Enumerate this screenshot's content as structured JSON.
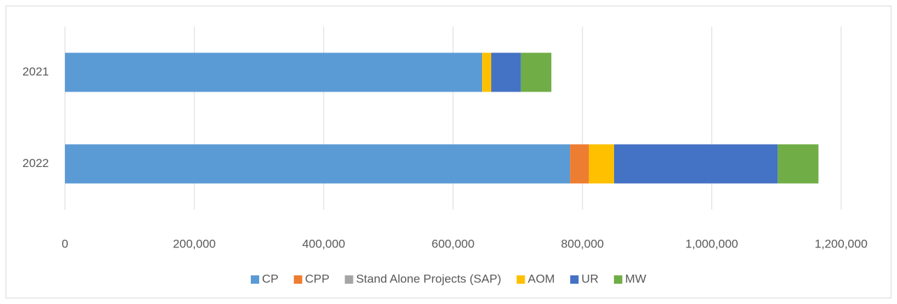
{
  "chart_data": {
    "type": "stacked-barh",
    "categories": [
      "2021",
      "2022"
    ],
    "series": [
      {
        "name": "CP",
        "color": "#5b9bd5",
        "values": [
          645000,
          781000
        ]
      },
      {
        "name": "CPP",
        "color": "#ed7d31",
        "values": [
          0,
          29000
        ]
      },
      {
        "name": "Stand Alone Projects (SAP)",
        "color": "#a5a5a5",
        "values": [
          0,
          0
        ]
      },
      {
        "name": "AOM",
        "color": "#ffc000",
        "values": [
          14000,
          39000
        ]
      },
      {
        "name": "UR",
        "color": "#4472c4",
        "values": [
          46000,
          253000
        ]
      },
      {
        "name": "MW",
        "color": "#70ad47",
        "values": [
          47000,
          63000
        ]
      }
    ],
    "xlim": [
      0,
      1200000
    ],
    "xticks": [
      0,
      {
        "value": 200000,
        "label": "200,000"
      },
      {
        "value": 400000,
        "label": "400,000"
      },
      {
        "value": 600000,
        "label": "600,000"
      },
      {
        "value": 800000,
        "label": "800,000"
      },
      {
        "value": 1000000,
        "label": "1,000,000"
      },
      {
        "value": 1200000,
        "label": "1,200,000"
      }
    ],
    "grid": true,
    "legend": "bottom"
  }
}
